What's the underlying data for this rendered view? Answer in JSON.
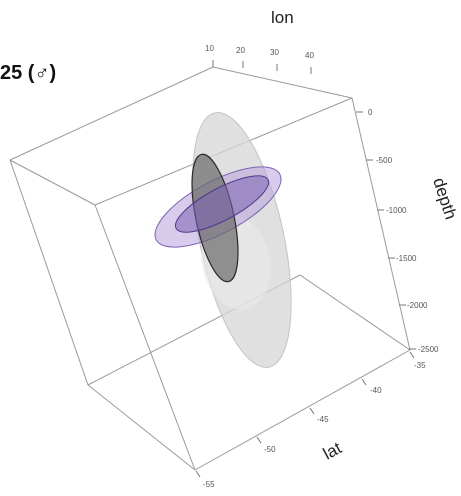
{
  "panel_label": "25 (♂)",
  "axes": {
    "lon": {
      "title": "lon",
      "ticks": [
        "10",
        "20",
        "30",
        "40"
      ]
    },
    "depth": {
      "title": "depth",
      "ticks": [
        "0",
        "-500",
        "-1000",
        "-1500",
        "-2000",
        "-2500"
      ]
    },
    "lat": {
      "title": "lat",
      "ticks": [
        "-35",
        "-40",
        "-45",
        "-50",
        "-55"
      ]
    }
  },
  "ellipsoids": [
    {
      "name": "outer-grey",
      "fill": "#d6d6d6",
      "stroke": "#bdbdbd"
    },
    {
      "name": "purple-disc",
      "fill": "#a78fd0",
      "stroke": "#6a4fa8"
    },
    {
      "name": "dark-grey",
      "fill": "#5a5a5a",
      "stroke": "#2a2a2a"
    }
  ]
}
